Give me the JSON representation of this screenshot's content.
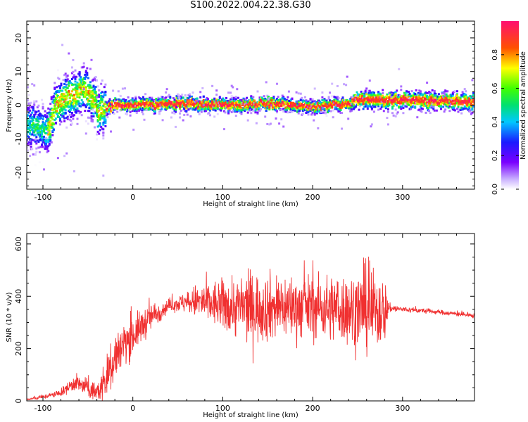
{
  "title": "S100.2022.004.22.38.G30",
  "chart_data": [
    {
      "type": "heatmap",
      "title": "S100.2022.004.22.38.G30",
      "xlabel": "Height of straight line (km)",
      "ylabel": "Frequency (Hz)",
      "xlim": [
        -118,
        380
      ],
      "ylim": [
        -25,
        25
      ],
      "xticks": [
        "-100",
        "0",
        "100",
        "200",
        "300"
      ],
      "yticks": [
        "-20",
        "-10",
        "0",
        "10",
        "20"
      ],
      "colorbar": {
        "label": "Normalized spectral amplitude",
        "range": [
          0,
          1
        ],
        "ticks": [
          "0.0",
          "0.2",
          "0.4",
          "0.6",
          "0.8"
        ]
      },
      "ridge": {
        "description_x": [
          -110,
          -95,
          -85,
          -75,
          -65,
          -55,
          -50,
          -45,
          -40,
          -38,
          -35,
          -30,
          -20,
          0,
          50,
          100,
          150,
          200,
          240,
          250,
          300,
          380
        ],
        "frequency_hz": [
          -6,
          -8,
          0,
          2,
          3,
          5,
          4,
          2,
          0,
          -3,
          -1,
          -1,
          0,
          0,
          0.5,
          0,
          0.5,
          -0.5,
          0.5,
          1.5,
          1.5,
          1
        ]
      }
    },
    {
      "type": "line",
      "xlabel": "Height of straight line (km)",
      "ylabel": "SNR (10 * v/v)",
      "xlim": [
        -118,
        380
      ],
      "ylim": [
        0,
        640
      ],
      "xticks": [
        "-100",
        "0",
        "100",
        "200",
        "300"
      ],
      "yticks": [
        "0",
        "200",
        "400",
        "600"
      ],
      "color": "#f03030",
      "envelope": {
        "x": [
          -118,
          -100,
          -80,
          -65,
          -50,
          -40,
          -30,
          -20,
          -10,
          0,
          20,
          40,
          55,
          70,
          100,
          130,
          160,
          200,
          240,
          260,
          280,
          285,
          300,
          340,
          380
        ],
        "mean": [
          5,
          15,
          30,
          70,
          50,
          30,
          80,
          170,
          220,
          250,
          320,
          365,
          375,
          380,
          365,
          355,
          360,
          360,
          350,
          350,
          345,
          355,
          350,
          340,
          325
        ],
        "spread": [
          5,
          8,
          15,
          35,
          40,
          40,
          90,
          120,
          100,
          80,
          60,
          25,
          40,
          70,
          110,
          150,
          140,
          130,
          150,
          180,
          140,
          20,
          12,
          10,
          10
        ]
      }
    }
  ]
}
